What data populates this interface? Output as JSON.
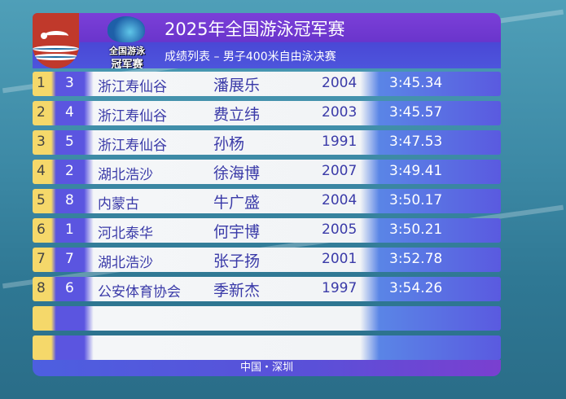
{
  "header": {
    "title": "2025年全国游泳冠军赛",
    "subtitle": "成绩列表 – 男子400米自由泳决赛",
    "logo_text_line1": "全国游泳",
    "logo_text_line2": "冠军赛"
  },
  "rows": [
    {
      "rank": "1",
      "lane": "3",
      "team": "浙江寿仙谷",
      "name": "潘展乐",
      "year": "2004",
      "time": "3:45.34"
    },
    {
      "rank": "2",
      "lane": "4",
      "team": "浙江寿仙谷",
      "name": "费立纬",
      "year": "2003",
      "time": "3:45.57"
    },
    {
      "rank": "3",
      "lane": "5",
      "team": "浙江寿仙谷",
      "name": "孙杨",
      "year": "1991",
      "time": "3:47.53"
    },
    {
      "rank": "4",
      "lane": "2",
      "team": "湖北浩沙",
      "name": "徐海博",
      "year": "2007",
      "time": "3:49.41"
    },
    {
      "rank": "5",
      "lane": "8",
      "team": "内蒙古",
      "name": "牛广盛",
      "year": "2004",
      "time": "3:50.17"
    },
    {
      "rank": "6",
      "lane": "1",
      "team": "河北泰华",
      "name": "何宇博",
      "year": "2005",
      "time": "3:50.21"
    },
    {
      "rank": "7",
      "lane": "7",
      "team": "湖北浩沙",
      "name": "张子扬",
      "year": "2001",
      "time": "3:52.78"
    },
    {
      "rank": "8",
      "lane": "6",
      "team": "公安体育协会",
      "name": "季新杰",
      "year": "1997",
      "time": "3:54.26"
    },
    {},
    {}
  ],
  "footer": {
    "location": "中国・深圳"
  },
  "colors": {
    "header_purple": "#7b3fd8",
    "rank_yellow": "#f5d86a",
    "lane_purple": "#5b55e0",
    "flag_red": "#c0392b"
  }
}
